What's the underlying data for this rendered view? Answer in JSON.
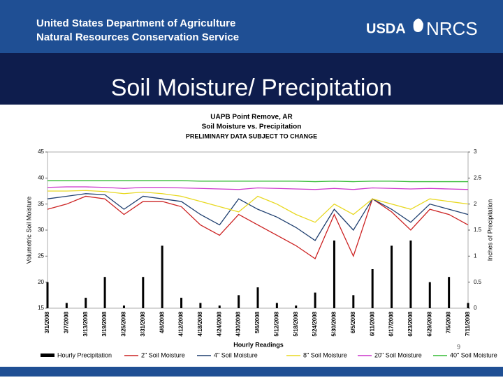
{
  "header": {
    "agency": "United States Department of Agriculture",
    "service": "Natural Resources Conservation Service",
    "logo_usda": "USDA",
    "logo_nrcs": "NRCS"
  },
  "slide_title": "Soil Moisture/ Precipitation",
  "page_number": "9",
  "chart_data": {
    "type": "line",
    "title": "UAPB Point Remove, AR",
    "subtitle": "Soil Moisture vs. Precipitation",
    "note": "PRELIMINARY DATA SUBJECT TO CHANGE",
    "x_label": "Hourly Readings",
    "y_label": "Volumetric Soil Moisture",
    "y2_label": "Inches of Precipitation",
    "categories": [
      "3/1/2008",
      "3/7/2008",
      "3/13/2008",
      "3/19/2008",
      "3/25/2008",
      "3/31/2008",
      "4/6/2008",
      "4/12/2008",
      "4/18/2008",
      "4/24/2008",
      "4/30/2008",
      "5/6/2008",
      "5/12/2008",
      "5/18/2008",
      "5/24/2008",
      "5/30/2008",
      "6/5/2008",
      "6/11/2008",
      "6/17/2008",
      "6/23/2008",
      "6/29/2008",
      "7/5/2008",
      "7/11/2008"
    ],
    "ylim": [
      15,
      45
    ],
    "yticks": [
      15,
      20,
      25,
      30,
      35,
      40,
      45
    ],
    "y2lim": [
      0,
      3
    ],
    "y2ticks": [
      0,
      0.5,
      1,
      1.5,
      2,
      2.5,
      3
    ],
    "series": [
      {
        "name": "Hourly Precipitation",
        "color": "#000000",
        "type": "bar",
        "axis": "y2",
        "values": [
          0.5,
          0.1,
          0.2,
          0.6,
          0.05,
          0.6,
          1.2,
          0.2,
          0.1,
          0.05,
          0.25,
          0.4,
          0.1,
          0.05,
          0.3,
          1.3,
          0.25,
          0.75,
          1.2,
          1.3,
          0.5,
          0.6,
          0.1
        ]
      },
      {
        "name": "2\" Soil Moisture",
        "color": "#cc2222",
        "values": [
          34,
          35,
          36.5,
          36,
          33,
          35.5,
          35.5,
          34.5,
          31,
          29,
          33,
          31,
          29,
          27,
          24.5,
          33,
          25,
          36,
          33.5,
          30,
          34,
          33,
          31
        ]
      },
      {
        "name": "4\" Soil Moisture",
        "color": "#1f3f6f",
        "values": [
          36,
          36.5,
          37,
          36.8,
          34,
          36.5,
          36,
          35.5,
          33,
          31,
          36,
          34,
          32.5,
          30.5,
          28,
          34,
          30,
          36,
          34,
          31.5,
          35,
          34,
          33
        ]
      },
      {
        "name": "8\" Soil Moisture",
        "color": "#e8d820",
        "values": [
          37.5,
          37.5,
          37.6,
          37.4,
          37,
          37.3,
          37,
          36.5,
          35.5,
          34.5,
          33.5,
          36.5,
          35,
          33,
          31.5,
          35,
          33,
          36,
          35,
          34,
          36,
          35.5,
          35
        ]
      },
      {
        "name": "20\" Soil Moisture",
        "color": "#cc33cc",
        "values": [
          38.2,
          38.3,
          38.3,
          38.2,
          38,
          38.2,
          38.2,
          38.1,
          38,
          37.9,
          37.8,
          38.1,
          38,
          37.9,
          37.8,
          38,
          37.8,
          38.1,
          38,
          37.9,
          38,
          37.9,
          37.8
        ]
      },
      {
        "name": "40\" Soil Moisture",
        "color": "#33bb33",
        "values": [
          39.5,
          39.5,
          39.5,
          39.5,
          39.5,
          39.5,
          39.5,
          39.5,
          39.4,
          39.4,
          39.4,
          39.4,
          39.4,
          39.4,
          39.3,
          39.4,
          39.3,
          39.4,
          39.4,
          39.3,
          39.3,
          39.3,
          39.3
        ]
      }
    ]
  }
}
